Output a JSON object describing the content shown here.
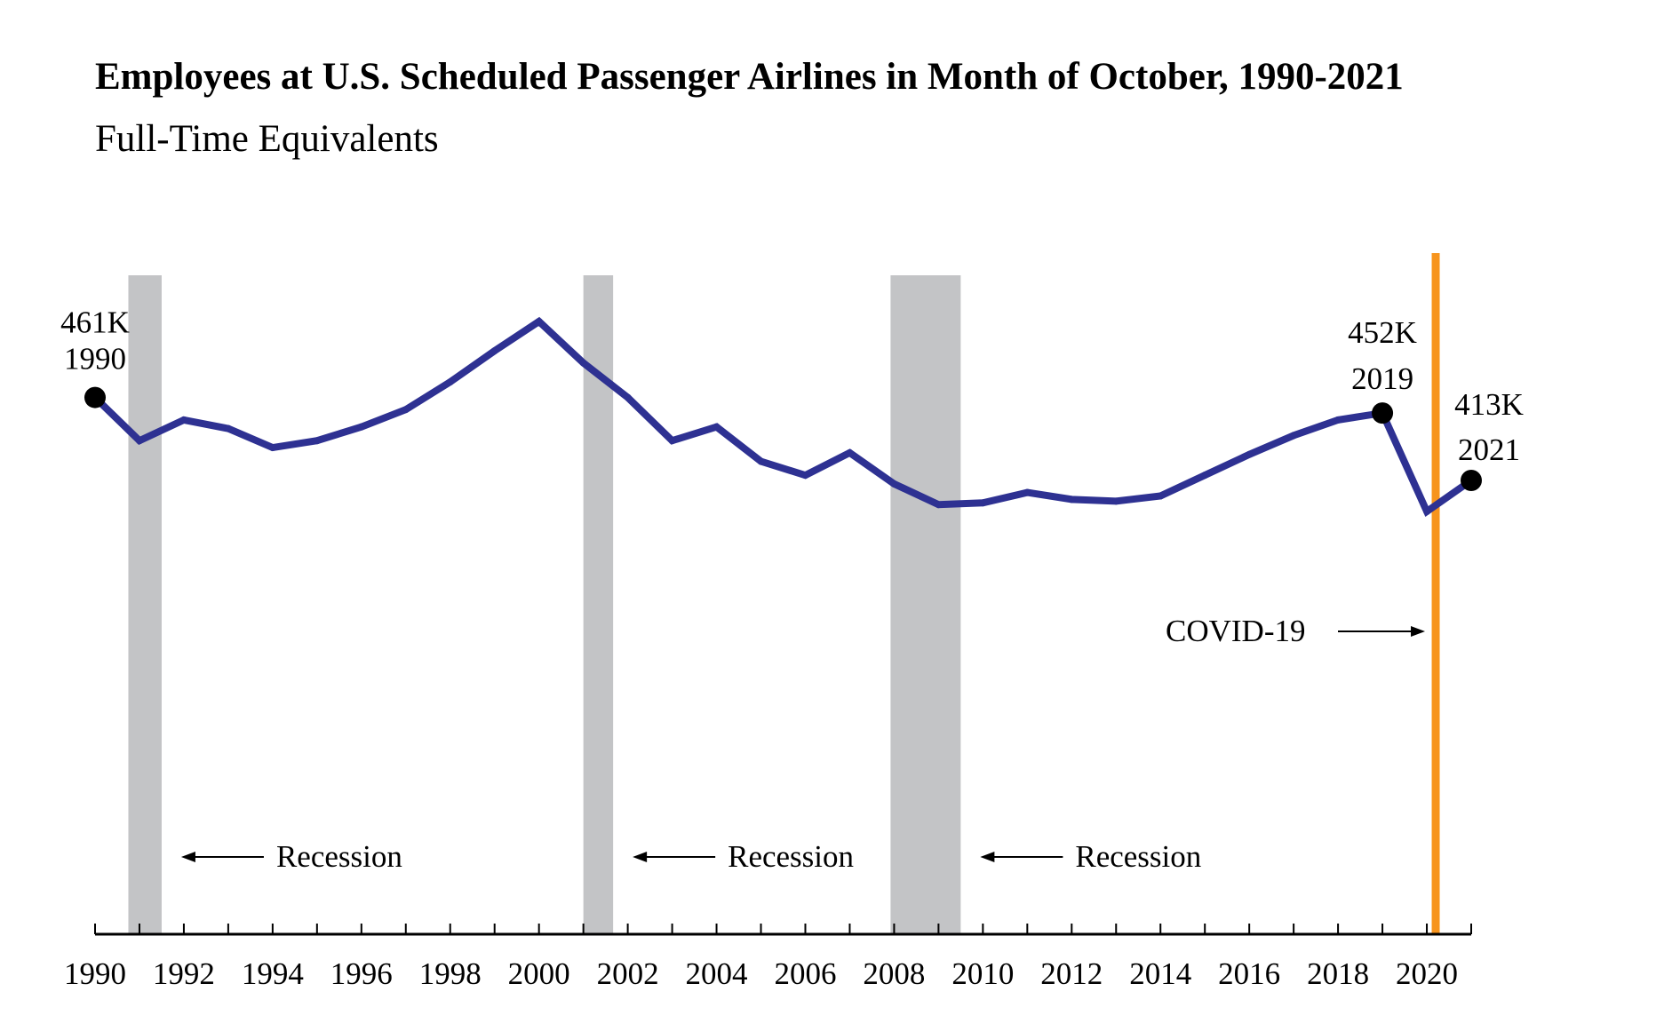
{
  "chart_data": {
    "type": "line",
    "title": "Employees at U.S. Scheduled Passenger Airlines in Month of October, 1990-2021",
    "subtitle": "Full-Time Equivalents",
    "xlabel": "",
    "ylabel": "",
    "x": [
      1990,
      1991,
      1992,
      1993,
      1994,
      1995,
      1996,
      1997,
      1998,
      1999,
      2000,
      2001,
      2002,
      2003,
      2004,
      2005,
      2006,
      2007,
      2008,
      2009,
      2010,
      2011,
      2012,
      2013,
      2014,
      2015,
      2016,
      2017,
      2018,
      2019,
      2020,
      2021
    ],
    "series": [
      {
        "name": "Employees (FTE, thousands)",
        "values": [
          461,
          436,
          448,
          443,
          432,
          436,
          444,
          454,
          470,
          488,
          505,
          481,
          461,
          436,
          444,
          424,
          416,
          429,
          411,
          399,
          400,
          406,
          402,
          401,
          404,
          416,
          428,
          439,
          448,
          452,
          395,
          413
        ],
        "color": "#2e3192"
      }
    ],
    "xticks": [
      1990,
      1992,
      1994,
      1996,
      1998,
      2000,
      2002,
      2004,
      2006,
      2008,
      2010,
      2012,
      2014,
      2016,
      2018,
      2020
    ],
    "xlim": [
      1990,
      2021
    ],
    "ylim": [
      0,
      530
    ],
    "grid": false,
    "recessions": [
      {
        "start": 1990.75,
        "end": 1991.5,
        "label": "Recession"
      },
      {
        "start": 2001.0,
        "end": 2001.67,
        "label": "Recession"
      },
      {
        "start": 2007.92,
        "end": 2009.5,
        "label": "Recession"
      }
    ],
    "covid": {
      "year": 2020.2,
      "label": "COVID-19",
      "color": "#f7941d"
    },
    "recession_color": "#c3c4c6",
    "callouts": [
      {
        "year": 1990,
        "value_label": "461K",
        "year_label": "1990"
      },
      {
        "year": 2019,
        "value_label": "452K",
        "year_label": "2019"
      },
      {
        "year": 2021,
        "value_label": "413K",
        "year_label": "2021"
      }
    ]
  }
}
